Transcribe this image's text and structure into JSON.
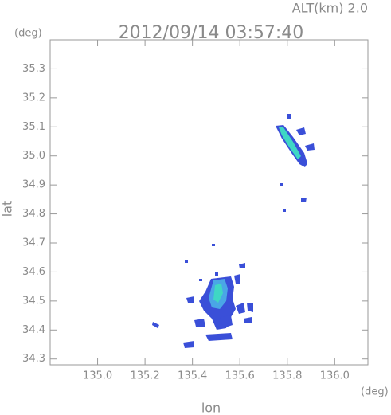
{
  "chart_data": {
    "type": "map",
    "title": "2012/09/14 03:57:40",
    "subtitle": "ALT(km) 2.0",
    "x_label": "lon",
    "y_label": "lat",
    "x_unit": "(deg)",
    "y_unit": "(deg)",
    "xlim": [
      134.8,
      136.14
    ],
    "ylim": [
      34.28,
      35.4
    ],
    "xticks": [
      {
        "value": 135,
        "label": "135.0"
      },
      135.2,
      135.4,
      135.6,
      135.8,
      {
        "value": 136,
        "label": "136.0"
      }
    ],
    "yticks": [
      34.3,
      34.4,
      34.5,
      34.6,
      34.7,
      34.8,
      34.9,
      {
        "value": 35,
        "label": "35.0"
      },
      35.1,
      35.2,
      35.3
    ]
  }
}
